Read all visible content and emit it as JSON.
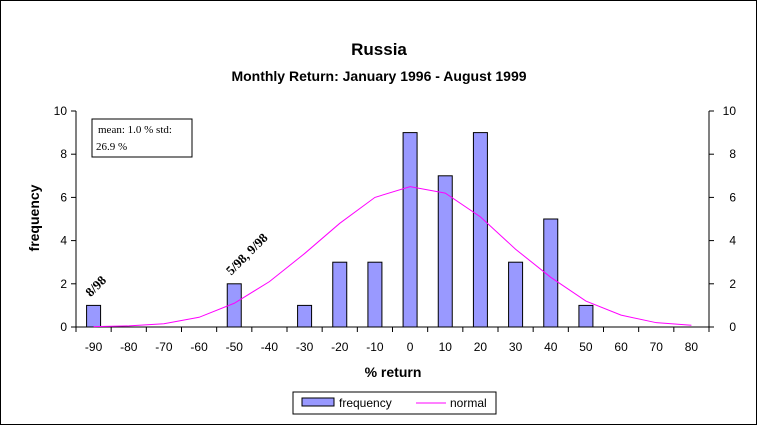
{
  "chart_data": {
    "type": "bar",
    "title": "Russia",
    "subtitle": "Monthly Return: January 1996 - August 1999",
    "xlabel": "% return",
    "ylabel": "frequency",
    "ylim": [
      0,
      10
    ],
    "yticks": [
      "0",
      "2",
      "4",
      "6",
      "8",
      "10"
    ],
    "grid": false,
    "legend_position": "bottom",
    "categories": [
      "-90",
      "-80",
      "-70",
      "-60",
      "-50",
      "-40",
      "-30",
      "-20",
      "-10",
      "0",
      "10",
      "20",
      "30",
      "40",
      "50",
      "60",
      "70",
      "80"
    ],
    "series": [
      {
        "name": "frequency",
        "type": "bar",
        "color": "#9999ff",
        "values": [
          1,
          0,
          0,
          0,
          2,
          0,
          1,
          3,
          3,
          9,
          7,
          9,
          3,
          5,
          1,
          0,
          0,
          0
        ]
      },
      {
        "name": "normal",
        "type": "line",
        "color": "#ff00ff",
        "values": [
          0.02,
          0.05,
          0.15,
          0.45,
          1.1,
          2.1,
          3.4,
          4.8,
          6.0,
          6.5,
          6.2,
          5.1,
          3.6,
          2.3,
          1.2,
          0.55,
          0.2,
          0.08
        ]
      }
    ],
    "stats_box": "mean: 1.0 % std: 26.9 %",
    "annotations": [
      {
        "text": "8/98",
        "category": "-90"
      },
      {
        "text": "5/98, 9/98",
        "category": "-50"
      }
    ]
  }
}
